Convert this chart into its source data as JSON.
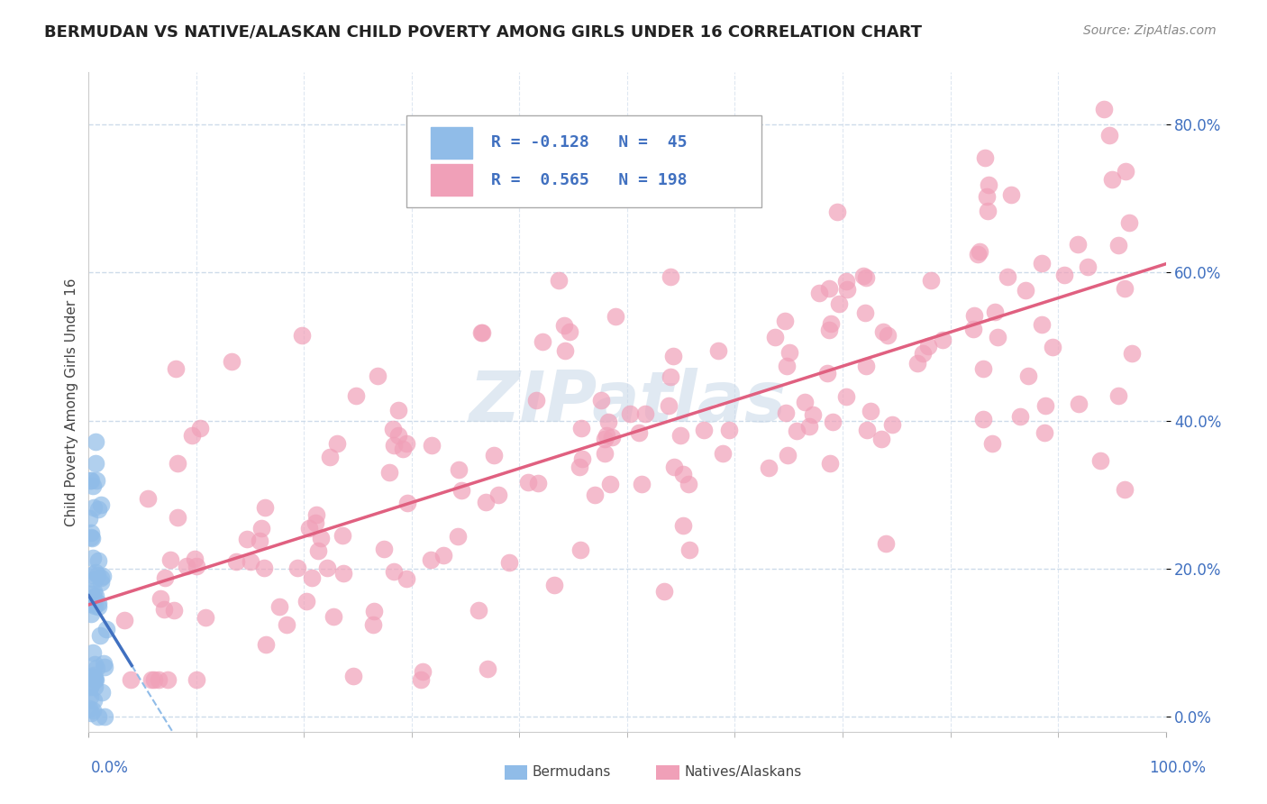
{
  "title": "BERMUDAN VS NATIVE/ALASKAN CHILD POVERTY AMONG GIRLS UNDER 16 CORRELATION CHART",
  "source": "Source: ZipAtlas.com",
  "ylabel": "Child Poverty Among Girls Under 16",
  "xlim": [
    0.0,
    1.0
  ],
  "ylim": [
    -0.02,
    0.87
  ],
  "ytick_labels": [
    "0.0%",
    "20.0%",
    "40.0%",
    "60.0%",
    "80.0%"
  ],
  "ytick_values": [
    0.0,
    0.2,
    0.4,
    0.6,
    0.8
  ],
  "scatter_color_bermudan": "#90bce8",
  "scatter_color_native": "#f0a0b8",
  "line_color_bermudan": "#4070c0",
  "line_color_bermudan_dashed": "#90bce8",
  "line_color_native": "#e06080",
  "background_color": "#ffffff",
  "grid_color": "#c8d8e8",
  "watermark": "ZIPatlas",
  "title_fontsize": 13,
  "axis_label_fontsize": 11,
  "tick_fontsize": 12,
  "tick_color": "#4070c0",
  "bermudan_R": -0.128,
  "bermudan_N": 45,
  "native_R": 0.565,
  "native_N": 198,
  "legend_r1": "R = -0.128   N =  45",
  "legend_r2": "R =  0.565   N = 198",
  "legend_color1": "#90bce8",
  "legend_color2": "#f0a0b8",
  "legend_text_color": "#4070c0"
}
